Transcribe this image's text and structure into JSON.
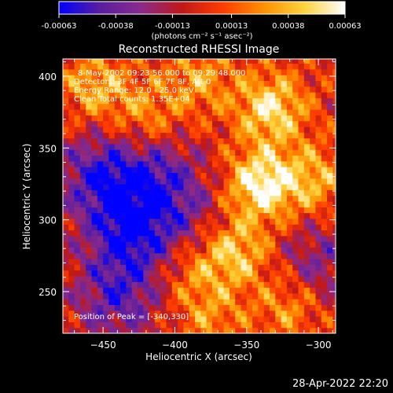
{
  "colorbar": {
    "ticks": [
      -0.00063,
      -0.00038,
      -0.00013,
      0.00013,
      0.00038,
      0.00063
    ],
    "tick_labels": [
      "-0.00063",
      "-0.00038",
      "-0.00013",
      "0.00013",
      "0.00038",
      "0.00063"
    ],
    "unit_label": "(photons cm⁻² s⁻¹ asec⁻²)",
    "range": [
      -0.00063,
      0.00063
    ],
    "colors": [
      "#0000ff",
      "#5a1ea0",
      "#8a2a8c",
      "#c01818",
      "#ff3c00",
      "#ff9000",
      "#ffd23c",
      "#ffffff"
    ]
  },
  "chart_data": {
    "type": "heatmap",
    "title": "Reconstructed RHESSI Image",
    "xlabel": "Heliocentric X (arcsec)",
    "ylabel": "Heliocentric Y (arcsec)",
    "xlim": [
      -478,
      -288
    ],
    "ylim": [
      221,
      412
    ],
    "xticks": [
      -450,
      -400,
      -350,
      -300
    ],
    "yticks": [
      250,
      300,
      350,
      400
    ],
    "peak": [
      -340,
      330
    ],
    "info_lines": [
      "8-May-2002 09:23:56.000 to 09:29:48.000",
      "Detectors: 3F 4F 5F 6F 7F 8F, Att 0",
      "Energy Range: 12.0 - 25.0 keV",
      "Clean     Total counts: 1.35E+04"
    ],
    "peak_label": "Position of Peak = [-340,330]",
    "sources": [
      {
        "x": -340,
        "y": 325,
        "value": 0.00063
      },
      {
        "x": -333,
        "y": 378,
        "value": 0.00052
      },
      {
        "x": -358,
        "y": 278,
        "value": 0.00045
      },
      {
        "x": -303,
        "y": 328,
        "value": 0.00035
      },
      {
        "x": -455,
        "y": 393,
        "value": 0.00035
      },
      {
        "x": -420,
        "y": 372,
        "value": 0.00028
      },
      {
        "x": -383,
        "y": 398,
        "value": 0.0003
      },
      {
        "x": -320,
        "y": 240,
        "value": 0.0003
      },
      {
        "x": -390,
        "y": 265,
        "value": 0.00025
      },
      {
        "x": -375,
        "y": 232,
        "value": 0.00025
      },
      {
        "x": -450,
        "y": 330,
        "value": -0.0005
      },
      {
        "x": -430,
        "y": 290,
        "value": -0.00052
      },
      {
        "x": -440,
        "y": 245,
        "value": -0.0004
      },
      {
        "x": -410,
        "y": 330,
        "value": -0.00035
      },
      {
        "x": -300,
        "y": 270,
        "value": -0.0003
      },
      {
        "x": -390,
        "y": 300,
        "value": -0.0002
      }
    ]
  },
  "footer": {
    "timestamp": "28-Apr-2022 22:20"
  }
}
